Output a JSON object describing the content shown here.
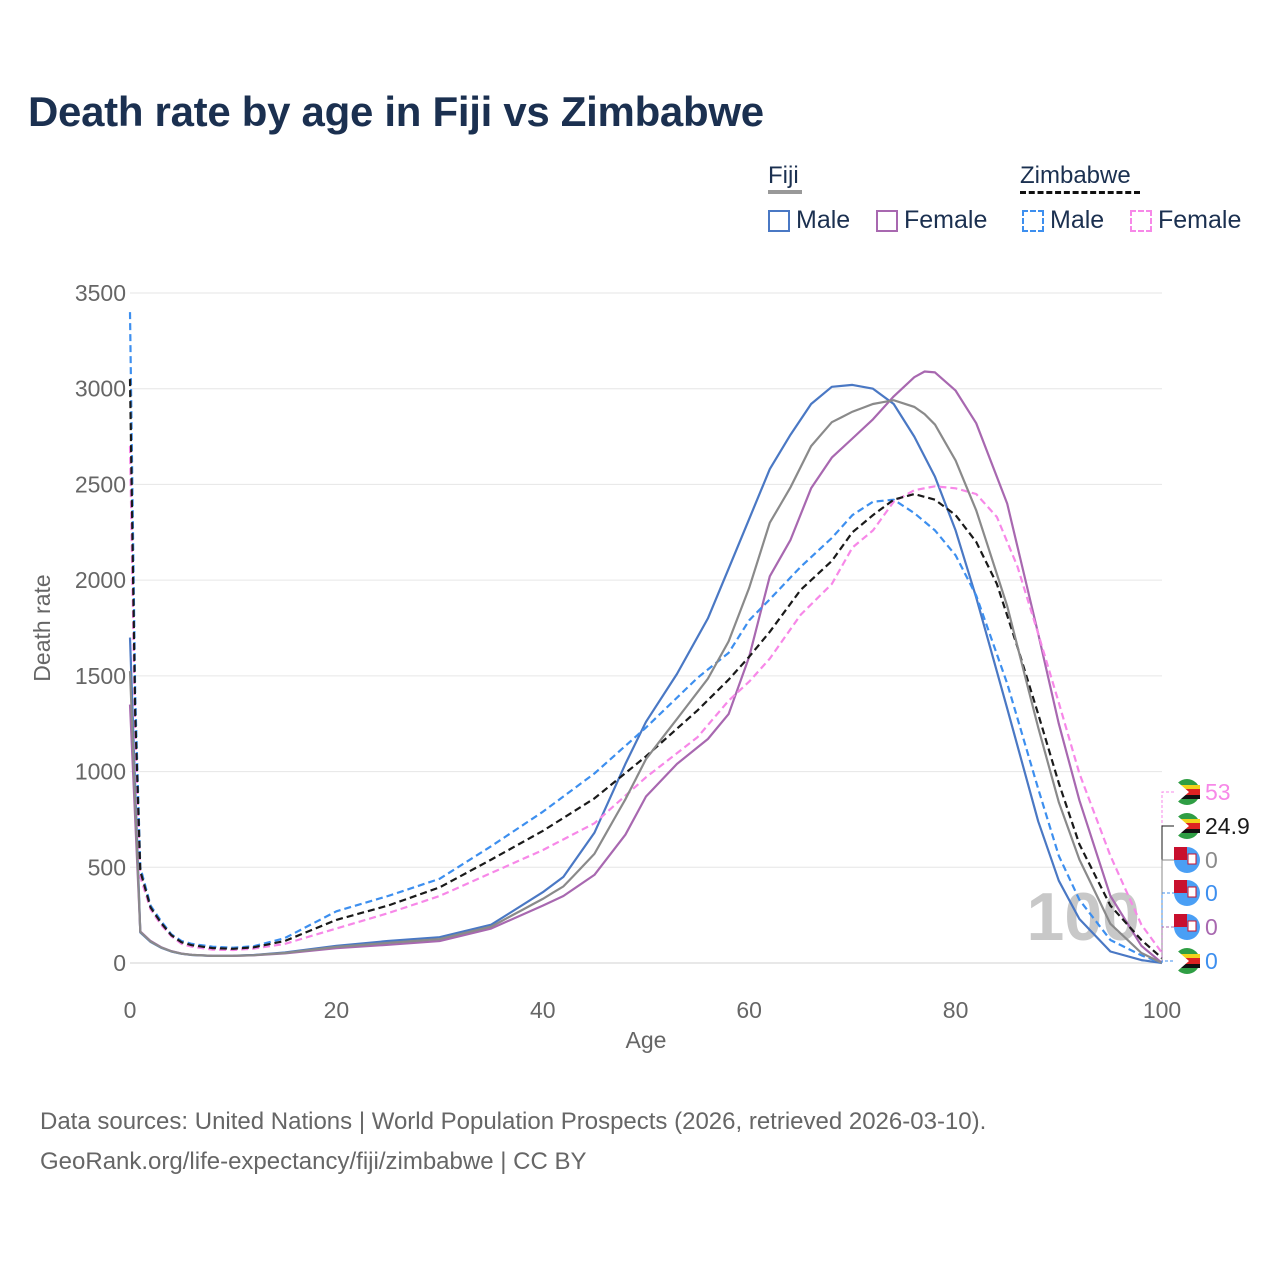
{
  "title": "Death rate by age in Fiji vs Zimbabwe",
  "legend": {
    "groups": [
      {
        "label": "Fiji",
        "items": [
          {
            "label": "Male",
            "color": "#4a78c4"
          },
          {
            "label": "Female",
            "color": "#a868b0"
          }
        ]
      },
      {
        "label": "Zimbabwe",
        "items": [
          {
            "label": "Male",
            "color": "#3d8fef"
          },
          {
            "label": "Female",
            "color": "#f788e8"
          }
        ]
      }
    ]
  },
  "footer": {
    "line1": "Data sources: United Nations | World Population Prospects (2026, retrieved 2026-03-10).",
    "line2": "GeoRank.org/life-expectancy/fiji/zimbabwe | CC BY"
  },
  "chart_data": {
    "type": "line",
    "title": "Death rate by age in Fiji vs Zimbabwe",
    "xlabel": "Age",
    "ylabel": "Death rate",
    "xlim": [
      0,
      100
    ],
    "ylim": [
      0,
      3500
    ],
    "xticks": [
      0,
      20,
      40,
      60,
      80,
      100
    ],
    "yticks": [
      0,
      500,
      1000,
      1500,
      2000,
      2500,
      3000,
      3500
    ],
    "year_watermark": "100",
    "series": [
      {
        "name": "Fiji Male",
        "country": "Fiji",
        "sex": "Male",
        "color": "#4a78c4",
        "dash": false,
        "x": [
          0,
          1,
          2,
          3,
          4,
          5,
          6,
          8,
          10,
          12,
          15,
          20,
          25,
          30,
          35,
          40,
          42,
          45,
          48,
          50,
          53,
          56,
          58,
          60,
          62,
          64,
          66,
          68,
          70,
          72,
          74,
          76,
          78,
          80,
          82,
          85,
          88,
          90,
          92,
          95,
          98,
          100
        ],
        "y": [
          1700,
          160,
          110,
          80,
          60,
          48,
          42,
          37,
          38,
          42,
          55,
          90,
          115,
          135,
          200,
          370,
          450,
          680,
          1040,
          1260,
          1510,
          1800,
          2060,
          2320,
          2580,
          2760,
          2920,
          3010,
          3020,
          3000,
          2920,
          2750,
          2540,
          2260,
          1910,
          1330,
          740,
          430,
          230,
          60,
          15,
          0
        ]
      },
      {
        "name": "Fiji Female",
        "country": "Fiji",
        "sex": "Female",
        "color": "#a868b0",
        "dash": false,
        "x": [
          0,
          1,
          2,
          3,
          4,
          5,
          6,
          8,
          10,
          12,
          15,
          20,
          25,
          30,
          35,
          40,
          42,
          45,
          48,
          50,
          53,
          56,
          58,
          60,
          62,
          64,
          66,
          68,
          70,
          72,
          74,
          76,
          77,
          78,
          80,
          82,
          85,
          88,
          90,
          92,
          95,
          98,
          100
        ],
        "y": [
          1350,
          165,
          115,
          83,
          62,
          49,
          43,
          37,
          37,
          40,
          50,
          78,
          95,
          115,
          180,
          300,
          350,
          460,
          670,
          870,
          1040,
          1170,
          1300,
          1600,
          2020,
          2210,
          2480,
          2640,
          2740,
          2840,
          2960,
          3060,
          3090,
          3085,
          2990,
          2820,
          2400,
          1720,
          1250,
          850,
          350,
          90,
          0
        ]
      },
      {
        "name": "Zimbabwe Male",
        "country": "Zimbabwe",
        "sex": "Male",
        "color": "#3d8fef",
        "dash": true,
        "x": [
          0,
          0.5,
          1,
          2,
          3,
          4,
          5,
          6,
          8,
          10,
          12,
          15,
          20,
          25,
          30,
          35,
          40,
          45,
          50,
          55,
          58,
          60,
          62,
          65,
          68,
          70,
          72,
          74,
          76,
          78,
          80,
          82,
          85,
          88,
          90,
          92,
          95,
          98,
          100
        ],
        "y": [
          3400,
          1400,
          500,
          300,
          220,
          150,
          115,
          100,
          85,
          80,
          88,
          130,
          270,
          350,
          440,
          610,
          790,
          990,
          1230,
          1490,
          1620,
          1790,
          1900,
          2070,
          2220,
          2340,
          2410,
          2420,
          2350,
          2260,
          2130,
          1920,
          1460,
          910,
          560,
          330,
          120,
          40,
          0
        ]
      },
      {
        "name": "Zimbabwe Female",
        "country": "Zimbabwe",
        "sex": "Female",
        "color": "#f788e8",
        "dash": true,
        "x": [
          0,
          0.5,
          1,
          2,
          3,
          4,
          5,
          6,
          8,
          10,
          12,
          15,
          20,
          25,
          30,
          35,
          40,
          45,
          50,
          55,
          58,
          60,
          62,
          65,
          68,
          70,
          72,
          74,
          76,
          78,
          80,
          82,
          84,
          86,
          88,
          90,
          92,
          95,
          98,
          100
        ],
        "y": [
          2700,
          1200,
          450,
          280,
          200,
          140,
          100,
          85,
          70,
          68,
          75,
          100,
          180,
          260,
          350,
          470,
          590,
          730,
          970,
          1180,
          1370,
          1470,
          1590,
          1820,
          1980,
          2170,
          2260,
          2410,
          2470,
          2490,
          2480,
          2450,
          2330,
          2070,
          1720,
          1360,
          990,
          560,
          200,
          53
        ]
      },
      {
        "name": "Zimbabwe Both",
        "country": "Zimbabwe",
        "sex": "Both",
        "color": "#1a1a1a",
        "dash": true,
        "x": [
          0,
          0.5,
          1,
          2,
          3,
          4,
          5,
          6,
          8,
          10,
          12,
          15,
          20,
          25,
          30,
          35,
          40,
          45,
          50,
          55,
          58,
          60,
          62,
          65,
          68,
          70,
          72,
          74,
          76,
          78,
          80,
          82,
          84,
          86,
          88,
          90,
          92,
          95,
          98,
          100
        ],
        "y": [
          3050,
          1300,
          480,
          290,
          210,
          145,
          108,
          93,
          78,
          74,
          82,
          115,
          225,
          300,
          395,
          540,
          690,
          860,
          1080,
          1320,
          1480,
          1600,
          1730,
          1950,
          2100,
          2250,
          2340,
          2420,
          2450,
          2420,
          2340,
          2200,
          1980,
          1650,
          1300,
          940,
          620,
          300,
          120,
          24.9
        ]
      }
    ],
    "end_labels": [
      {
        "text": "53",
        "color": "#f788e8",
        "flag": "zimbabwe"
      },
      {
        "text": "24.9",
        "color": "#1a1a1a",
        "flag": "zimbabwe"
      },
      {
        "text": "0",
        "color": "#8a8a8a",
        "flag": "fiji"
      },
      {
        "text": "0",
        "color": "#3d8fef",
        "flag": "fiji"
      },
      {
        "text": "0",
        "color": "#a868b0",
        "flag": "fiji"
      },
      {
        "text": "0",
        "color": "#3d8fef",
        "flag": "zimbabwe"
      }
    ]
  }
}
